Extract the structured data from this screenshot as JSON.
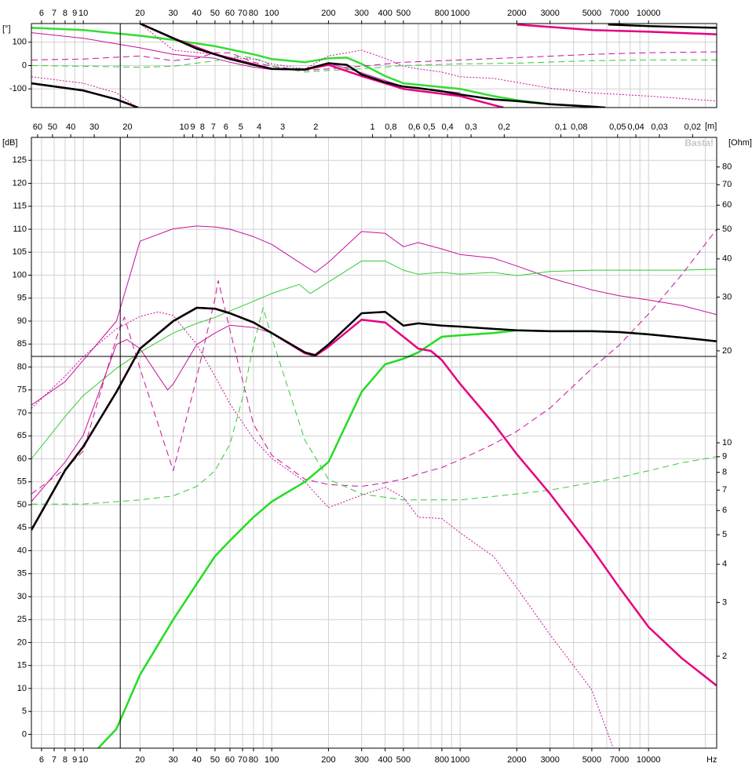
{
  "chart_data": [
    {
      "type": "line",
      "y_label": "[°]",
      "x_log": true,
      "xaxis_position": "top",
      "xlim": [
        5.3,
        23000
      ],
      "xticks": [
        6,
        7,
        8,
        9,
        10,
        20,
        30,
        40,
        50,
        60,
        70,
        80,
        100,
        200,
        300,
        400,
        500,
        800,
        1000,
        2000,
        3000,
        5000,
        7000,
        10000
      ],
      "xgrid": [
        6,
        7,
        8,
        9,
        10,
        20,
        30,
        40,
        50,
        60,
        70,
        80,
        90,
        100,
        200,
        300,
        400,
        500,
        600,
        700,
        800,
        900,
        1000,
        2000,
        3000,
        4000,
        5000,
        6000,
        7000,
        8000,
        9000,
        10000,
        20000
      ],
      "ylim": [
        -180,
        180
      ],
      "yticks": [
        100,
        0,
        -100
      ],
      "grid": true,
      "cursor_x": 15.7,
      "series": [
        {
          "color": "#33dd33",
          "width": "thick",
          "line_style": "solid",
          "x": [
            5.3,
            10,
            20,
            30,
            50,
            80,
            100,
            150,
            200,
            250,
            300,
            400,
            500,
            1000,
            1500,
            2000,
            3000,
            5000
          ],
          "values": [
            162,
            152,
            128,
            110,
            83,
            48,
            28,
            14,
            31,
            34,
            7,
            -45,
            -76,
            -100,
            -131,
            -148,
            -166,
            -176
          ]
        },
        {
          "color": "#c8109c",
          "width": "thin",
          "line_style": "solid",
          "x": [
            5.3,
            10,
            20,
            30,
            40,
            50,
            60,
            80,
            100,
            150,
            200,
            300,
            500,
            1000
          ],
          "values": [
            141,
            117,
            76,
            48,
            38,
            31,
            14,
            -7,
            -17,
            -14,
            10,
            -31,
            -90,
            -117
          ]
        },
        {
          "color": "#c8109c",
          "width": "thin",
          "line_style": "dashed",
          "x": [
            5.3,
            10,
            20,
            30,
            40,
            50,
            60,
            80,
            100,
            150,
            200,
            300,
            500,
            1000,
            2000,
            5000,
            10000,
            23000
          ],
          "values": [
            24,
            28,
            41,
            21,
            31,
            55,
            55,
            14,
            -3,
            -21,
            -14,
            -3,
            14,
            24,
            34,
            48,
            55,
            59
          ]
        },
        {
          "color": "#c8109c",
          "width": "thin",
          "line_style": "dotted",
          "x": [
            5.3,
            10,
            15,
            19,
            19.5,
            20,
            30,
            50,
            60,
            80,
            100,
            150,
            200,
            300,
            400,
            500,
            600,
            800,
            1000,
            1500,
            2000,
            3000,
            5000,
            10000,
            23000
          ],
          "values": [
            -48,
            -76,
            -117,
            -176,
            null,
            180,
            66,
            48,
            34,
            28,
            7,
            -14,
            41,
            66,
            31,
            -3,
            -14,
            -28,
            -48,
            -55,
            -72,
            -97,
            -117,
            -131,
            -152
          ]
        },
        {
          "color": "#33cc33",
          "width": "thin",
          "line_style": "dashed",
          "x": [
            5.3,
            10,
            20,
            30,
            50,
            70,
            90,
            100,
            150,
            200,
            300,
            500,
            1000,
            2000,
            5000,
            10000,
            23000
          ],
          "values": [
            0,
            -3,
            -7,
            -3,
            21,
            41,
            21,
            -3,
            -28,
            -21,
            -14,
            0,
            7,
            10,
            21,
            24,
            24
          ]
        },
        {
          "color": "#e6007e",
          "width": "thick",
          "line_style": "solid",
          "x": [
            5.3,
            10,
            15,
            19.5,
            19.8,
            20,
            30,
            50,
            100,
            150,
            200,
            300,
            500,
            1000,
            1500,
            1700,
            1750,
            2000,
            5000,
            10000,
            23000
          ],
          "values": [
            -76,
            -107,
            -145,
            -180,
            null,
            180,
            117,
            48,
            -14,
            -17,
            3,
            -45,
            -100,
            -131,
            -169,
            -180,
            null,
            176,
            152,
            145,
            134
          ]
        },
        {
          "color": "#000000",
          "width": "thick",
          "line_style": "solid",
          "x": [
            5.3,
            10,
            15,
            19.5,
            19.8,
            20,
            30,
            40,
            50,
            60,
            80,
            100,
            150,
            200,
            250,
            300,
            400,
            500,
            600,
            800,
            1000,
            1500,
            2000,
            3000,
            5000,
            5900,
            6000,
            6100,
            10000,
            23000
          ],
          "values": [
            -76,
            -107,
            -145,
            -180,
            null,
            180,
            117,
            72,
            48,
            28,
            3,
            -14,
            -17,
            10,
            3,
            -38,
            -72,
            -90,
            -97,
            -110,
            -124,
            -145,
            -152,
            -166,
            -176,
            -180,
            null,
            176,
            169,
            162
          ]
        }
      ]
    },
    {
      "type": "line",
      "y_label": "[dB]",
      "y2_label": "[Ohm]",
      "x_unit": "Hz",
      "x2_unit": "[m]",
      "watermark": "Basta!",
      "x_log": true,
      "xaxis_position": "bottom",
      "xlim": [
        5.3,
        23000
      ],
      "xticks": [
        6,
        7,
        8,
        9,
        10,
        20,
        30,
        40,
        50,
        60,
        70,
        80,
        100,
        200,
        300,
        400,
        500,
        800,
        1000,
        2000,
        3000,
        5000,
        7000,
        10000
      ],
      "xgrid": [
        6,
        7,
        8,
        9,
        10,
        20,
        30,
        40,
        50,
        60,
        70,
        80,
        90,
        100,
        200,
        300,
        400,
        500,
        600,
        700,
        800,
        900,
        1000,
        2000,
        3000,
        4000,
        5000,
        6000,
        7000,
        8000,
        9000,
        10000,
        20000
      ],
      "x2lim": [
        64.7,
        0.0149
      ],
      "x2ticks": [
        60,
        50,
        40,
        30,
        20,
        10,
        9,
        8,
        7,
        6,
        5,
        4,
        3,
        2,
        1,
        {
          "value": 0.8,
          "label": "0,8"
        },
        {
          "value": 0.6,
          "label": "0,6"
        },
        {
          "value": 0.5,
          "label": "0,5"
        },
        {
          "value": 0.4,
          "label": "0,4"
        },
        {
          "value": 0.3,
          "label": "0,3"
        },
        {
          "value": 0.2,
          "label": "0,2"
        },
        {
          "value": 0.1,
          "label": "0,1"
        },
        {
          "value": 0.08,
          "label": "0,08"
        },
        {
          "value": 0.05,
          "label": "0,05"
        },
        {
          "value": 0.04,
          "label": "0,04"
        },
        {
          "value": 0.03,
          "label": "0,03"
        },
        {
          "value": 0.02,
          "label": "0,02"
        }
      ],
      "ylim": [
        -3,
        130
      ],
      "yticks": [
        0,
        5,
        10,
        15,
        20,
        25,
        30,
        35,
        40,
        45,
        50,
        55,
        60,
        65,
        70,
        75,
        80,
        85,
        90,
        95,
        100,
        105,
        110,
        115,
        120,
        125
      ],
      "y2_log": true,
      "y2lim": [
        1,
        100
      ],
      "y2ticks": [
        2,
        3,
        4,
        5,
        6,
        7,
        8,
        9,
        10,
        20,
        30,
        40,
        50,
        60,
        70,
        80
      ],
      "grid": true,
      "cursor_x": 15.7,
      "cursor_y": 82.3,
      "series": [
        {
          "color": "#c8109c",
          "width": "thin",
          "line_style": "solid",
          "x": [
            5.3,
            8,
            10,
            15,
            20,
            30,
            40,
            50,
            60,
            80,
            100,
            150,
            170,
            200,
            300,
            400,
            500,
            600,
            800,
            1000,
            1500,
            2000,
            3000,
            5000,
            7000,
            10000,
            15000,
            23000
          ],
          "values": [
            71.7,
            76.8,
            81.5,
            90,
            107.4,
            110.1,
            110.7,
            110.5,
            110,
            108.4,
            106.7,
            102,
            100.6,
            102.8,
            109.5,
            109.1,
            106.2,
            107.1,
            105.7,
            104.5,
            103.7,
            102,
            99.4,
            96.8,
            95.5,
            94.6,
            93.4,
            91.4
          ]
        },
        {
          "color": "#33cc33",
          "width": "thin",
          "line_style": "solid",
          "x": [
            5.3,
            8,
            10,
            15,
            20,
            30,
            40,
            50,
            60,
            80,
            100,
            140,
            160,
            200,
            300,
            400,
            500,
            600,
            800,
            1000,
            1500,
            2000,
            3000,
            5000,
            7000,
            10000,
            15000,
            23000
          ],
          "values": [
            60,
            69.2,
            73.8,
            79.7,
            83.2,
            87.4,
            89.5,
            90.8,
            92.2,
            94.3,
            96,
            98,
            96,
            98.5,
            103.1,
            103.1,
            101.1,
            100.2,
            100.6,
            100.2,
            100.6,
            99.9,
            100.8,
            101.1,
            101.1,
            101.1,
            101.1,
            101.3
          ]
        },
        {
          "color": "#c8109c",
          "width": "thin",
          "line_style": "solid",
          "x": [
            5.3,
            8,
            10,
            15,
            17,
            20,
            25,
            28,
            30,
            40,
            50,
            60,
            80,
            100,
            150,
            170,
            200,
            300
          ],
          "values": [
            50.7,
            59.3,
            65.2,
            84.9,
            86,
            84,
            78,
            75,
            76.3,
            84.9,
            87.4,
            89.1,
            88.6,
            87.4,
            83.2,
            82.4,
            84.4,
            90.3
          ]
        },
        {
          "color": "#c8109c",
          "width": "thin",
          "line_style": "dotted",
          "x": [
            5.3,
            8,
            10,
            15,
            20,
            25,
            30,
            40,
            50,
            60,
            80,
            100,
            150,
            200,
            300,
            400,
            500,
            600,
            800,
            1000,
            1500,
            2000,
            3000,
            5000,
            6500
          ],
          "values": [
            71,
            78,
            82.3,
            88.3,
            91,
            92,
            91.2,
            84.9,
            78,
            72,
            64.4,
            60.1,
            55,
            49.4,
            52.1,
            53.8,
            51.6,
            47.3,
            47,
            43.9,
            38.8,
            31.9,
            21.7,
            9.7,
            -3
          ]
        },
        {
          "color": "#c8109c",
          "width": "thin",
          "line_style": "dashed",
          "axis": "y2",
          "x": [
            5.3,
            8,
            10,
            15,
            16.5,
            20,
            30,
            40,
            50,
            52,
            60,
            80,
            100,
            150,
            200,
            300,
            400,
            500,
            600,
            800,
            1000,
            1500,
            2000,
            3000,
            5000,
            7000,
            10000,
            15000,
            23000
          ],
          "values": [
            6.8,
            8.2,
            9.4,
            22.1,
            25.8,
            17.5,
            8.1,
            16.4,
            29.7,
            34,
            23.4,
            11.5,
            9.1,
            7.6,
            7.3,
            7.2,
            7.4,
            7.6,
            7.9,
            8.3,
            8.8,
            9.9,
            10.9,
            13,
            17.5,
            20.9,
            26.4,
            35.5,
            50
          ]
        },
        {
          "color": "#33cc33",
          "width": "thin",
          "line_style": "dashed",
          "axis": "y2",
          "x": [
            5.3,
            10,
            20,
            30,
            40,
            50,
            60,
            70,
            80,
            90,
            100,
            150,
            200,
            300,
            500,
            1000,
            2000,
            3000,
            5000,
            7000,
            10000,
            15000,
            23000
          ],
          "values": [
            6.3,
            6.3,
            6.5,
            6.7,
            7.2,
            8.1,
            9.9,
            14,
            20.9,
            27.7,
            22.1,
            10.2,
            7.6,
            6.8,
            6.5,
            6.5,
            6.8,
            7,
            7.4,
            7.7,
            8.1,
            8.6,
            9
          ]
        },
        {
          "color": "#22dd22",
          "width": "thick",
          "line_style": "solid",
          "x": [
            12,
            15,
            20,
            30,
            40,
            50,
            60,
            80,
            100,
            150,
            200,
            300,
            400,
            500,
            600,
            800,
            1000,
            1500,
            2000,
            3000,
            5000,
            7000,
            10000,
            15000,
            23000
          ],
          "values": [
            -3,
            1.2,
            13,
            25,
            32.8,
            38.8,
            42.2,
            47.3,
            50.7,
            55,
            59.3,
            74.6,
            80.6,
            81.8,
            83.2,
            86.6,
            86.9,
            87.4,
            88,
            87.8,
            87.8,
            87.6,
            87.1,
            86.4,
            85.6
          ]
        },
        {
          "color": "#e6007e",
          "width": "thick",
          "line_style": "solid",
          "x": [
            5.3,
            8,
            10,
            15,
            20,
            30,
            40,
            50,
            60,
            80,
            100,
            150,
            170,
            200,
            300,
            400,
            500,
            600,
            700,
            800,
            1000,
            1500,
            2000,
            3000,
            5000,
            7000,
            10000,
            15000,
            23000
          ],
          "values": [
            44.5,
            57.5,
            62.7,
            74.6,
            84,
            90,
            92.9,
            92.7,
            91.7,
            89.7,
            87.4,
            83,
            82.4,
            84.4,
            90.3,
            89.7,
            86.6,
            84,
            83.5,
            81.5,
            76.3,
            67.8,
            61,
            52.4,
            40.5,
            32,
            23.4,
            16.6,
            10.6
          ]
        },
        {
          "color": "#000000",
          "width": "thick",
          "line_style": "solid",
          "x": [
            5.3,
            8,
            10,
            15,
            20,
            30,
            40,
            50,
            60,
            80,
            100,
            150,
            170,
            200,
            300,
            400,
            500,
            600,
            800,
            1000,
            1500,
            2000,
            3000,
            5000,
            7000,
            10000,
            15000,
            23000
          ],
          "values": [
            44.5,
            57.5,
            62.7,
            74.6,
            84,
            90,
            92.9,
            92.7,
            91.7,
            89.7,
            87.4,
            83.2,
            82.6,
            84.9,
            91.7,
            92,
            89,
            89.5,
            89,
            88.8,
            88.3,
            88,
            87.8,
            87.8,
            87.6,
            87.1,
            86.4,
            85.6
          ]
        }
      ]
    }
  ]
}
